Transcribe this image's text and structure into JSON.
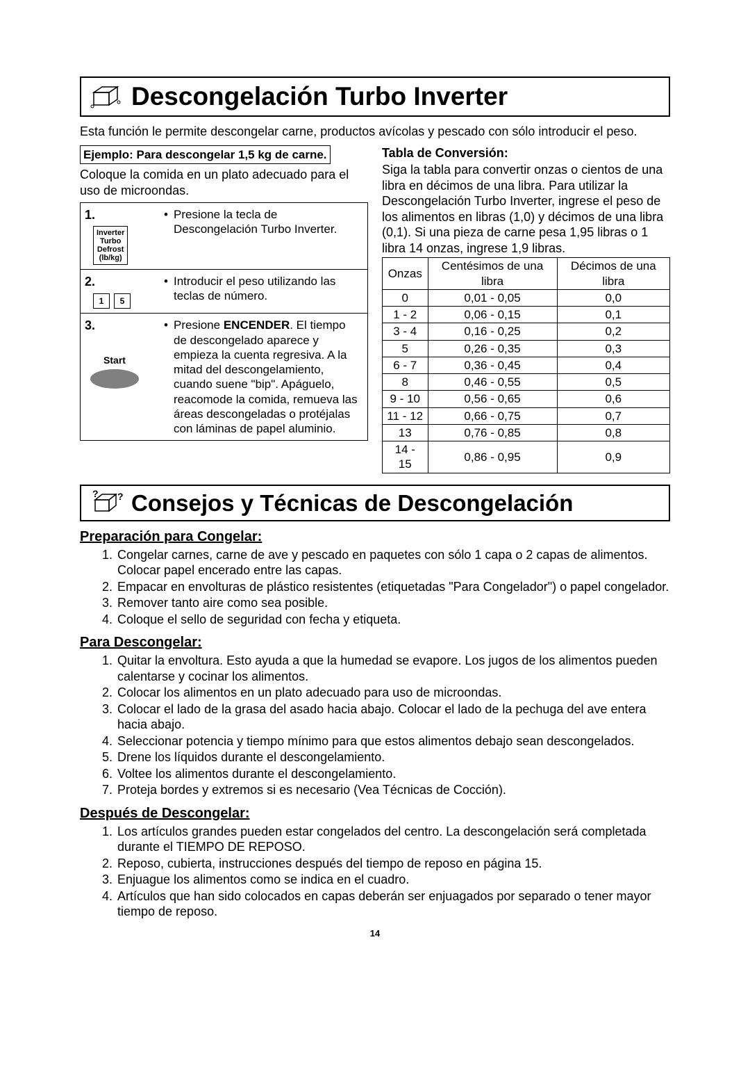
{
  "page_number": "14",
  "colors": {
    "text": "#000000",
    "background": "#ffffff",
    "border": "#000000",
    "start_button_fill": "#808080"
  },
  "section1": {
    "title": "Descongelación Turbo Inverter",
    "intro": "Esta función le permite descongelar carne, productos avícolas y pescado con sólo introducir el peso.",
    "example_label": "Ejemplo: Para descongelar 1,5 kg de carne.",
    "example_note": "Coloque la comida en un plato adecuado para el uso de microondas.",
    "steps": [
      {
        "num": "1.",
        "button_lines": [
          "Inverter",
          "Turbo",
          "Defrost",
          "(lb/kg)"
        ],
        "desc_pre": "Presione la tecla de Descongelación Turbo Inverter."
      },
      {
        "num": "2.",
        "keys": [
          "1",
          "5"
        ],
        "desc_pre": "Introducir el peso utilizando las teclas de número."
      },
      {
        "num": "3.",
        "start_label": "Start",
        "desc_pre_a": "Presione ",
        "desc_bold": "ENCENDER",
        "desc_post": ". El tiempo de descongelado aparece y empieza la cuenta regresiva. A la mitad del descongelamiento, cuando suene \"bip\". Apáguelo, reacomode la comida, remueva las áreas descongeladas o protéjalas con láminas de papel aluminio."
      }
    ],
    "conversion": {
      "heading": "Tabla de Conversión:",
      "intro": "Siga la tabla para convertir onzas o cientos de una libra en décimos de una libra. Para utilizar la Descongelación Turbo Inverter, ingrese el peso de los alimentos en libras (1,0) y décimos de una libra (0,1). Si una pieza de carne pesa 1,95 libras o 1 libra 14 onzas, ingrese 1,9 libras.",
      "headers": [
        "Onzas",
        "Centésimos de una libra",
        "Décimos de una libra"
      ],
      "rows": [
        [
          "0",
          "0,01 - 0,05",
          "0,0"
        ],
        [
          "1 - 2",
          "0,06 - 0,15",
          "0,1"
        ],
        [
          "3 - 4",
          "0,16 - 0,25",
          "0,2"
        ],
        [
          "5",
          "0,26 - 0,35",
          "0,3"
        ],
        [
          "6 - 7",
          "0,36 - 0,45",
          "0,4"
        ],
        [
          "8",
          "0,46 - 0,55",
          "0,5"
        ],
        [
          "9 - 10",
          "0,56 - 0,65",
          "0,6"
        ],
        [
          "11 - 12",
          "0,66 - 0,75",
          "0,7"
        ],
        [
          "13",
          "0,76 - 0,85",
          "0,8"
        ],
        [
          "14 - 15",
          "0,86 - 0,95",
          "0,9"
        ]
      ]
    }
  },
  "section2": {
    "title": "Consejos y Técnicas de Descongelación",
    "groups": [
      {
        "heading": "Preparación para Congelar:",
        "items": [
          "Congelar carnes, carne de ave y pescado en paquetes con sólo 1 capa o 2 capas de alimentos. Colocar papel encerado entre las capas.",
          "Empacar en envolturas de plástico resistentes (etiquetadas \"Para Congelador\") o papel congelador.",
          "Remover tanto aire como sea posible.",
          "Coloque el sello de seguridad con fecha y etiqueta."
        ]
      },
      {
        "heading": "Para Descongelar:",
        "items": [
          "Quitar la envoltura.  Esto ayuda a que la humedad se evapore. Los jugos de los alimentos pueden calentarse y cocinar los alimentos.",
          "Colocar los alimentos en un plato adecuado para uso de microondas.",
          "Colocar el lado de la grasa del asado hacia abajo. Colocar el lado de la pechuga del ave entera hacia abajo.",
          "Seleccionar potencia y tiempo mínimo para que estos alimentos debajo sean descongelados.",
          "Drene los líquidos durante el descongelamiento.",
          "Voltee los alimentos durante el descongelamiento.",
          "Proteja bordes y extremos si es necesario (Vea Técnicas de Cocción)."
        ]
      },
      {
        "heading": "Después de Descongelar:",
        "items": [
          "Los artículos grandes pueden estar congelados del centro. La descongelación será completada durante el TIEMPO DE REPOSO.",
          "Reposo, cubierta, instrucciones después del tiempo de reposo en página 15.",
          "Enjuague los alimentos como se indica en el cuadro.",
          "Artículos que han sido colocados en capas deberán ser enjuagados por separado o tener mayor tiempo de reposo."
        ]
      }
    ]
  }
}
